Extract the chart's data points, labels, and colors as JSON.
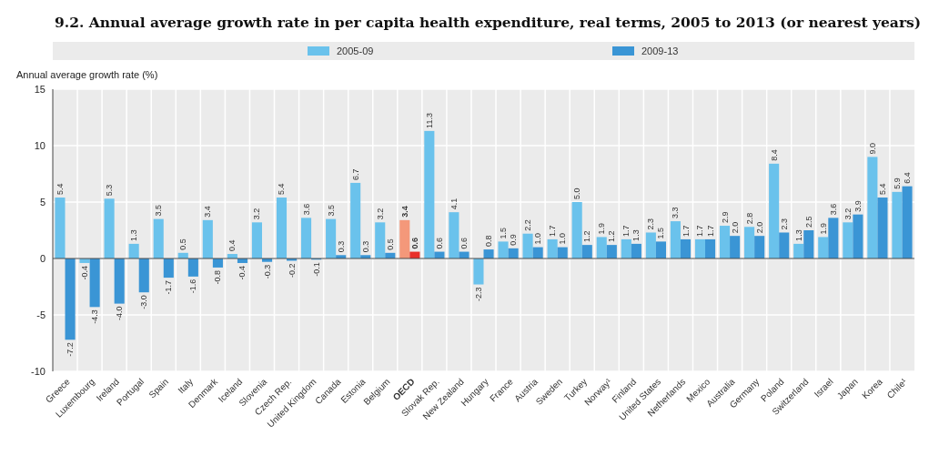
{
  "chart_data": {
    "type": "bar",
    "title": "9.2. Annual average growth rate in per capita health expenditure, real terms, 2005 to 2013 (or nearest years)",
    "ylabel": "Annual average growth rate (%)",
    "categories": [
      "Greece",
      "Luxembourg",
      "Ireland",
      "Portugal",
      "Spain",
      "Italy",
      "Denmark",
      "Iceland",
      "Slovenia",
      "Czech Rep.",
      "United Kingdom",
      "Canada",
      "Estonia",
      "Belgium",
      "OECD",
      "Slovak Rep.",
      "New Zealand",
      "Hungary",
      "France",
      "Austria",
      "Sweden",
      "Turkey",
      "Norway¹",
      "Finland",
      "United States",
      "Netherlands",
      "Mexico",
      "Australia",
      "Germany",
      "Poland",
      "Switzerland",
      "Israel",
      "Japan",
      "Korea",
      "Chile¹"
    ],
    "series": [
      {
        "name": "2005-09",
        "color": "#6ac2ec",
        "colors": [
          "#6ac2ec",
          "#6ac2ec",
          "#6ac2ec",
          "#6ac2ec",
          "#6ac2ec",
          "#6ac2ec",
          "#6ac2ec",
          "#6ac2ec",
          "#6ac2ec",
          "#6ac2ec",
          "#6ac2ec",
          "#6ac2ec",
          "#6ac2ec",
          "#6ac2ec",
          "#f4987a",
          "#6ac2ec",
          "#6ac2ec",
          "#6ac2ec",
          "#6ac2ec",
          "#6ac2ec",
          "#6ac2ec",
          "#6ac2ec",
          "#6ac2ec",
          "#6ac2ec",
          "#6ac2ec",
          "#6ac2ec",
          "#6ac2ec",
          "#6ac2ec",
          "#6ac2ec",
          "#6ac2ec",
          "#6ac2ec",
          "#6ac2ec",
          "#6ac2ec",
          "#6ac2ec",
          "#6ac2ec"
        ],
        "values": [
          5.4,
          -0.4,
          5.3,
          1.3,
          3.5,
          0.5,
          3.4,
          0.4,
          3.2,
          5.4,
          3.6,
          3.5,
          6.7,
          3.2,
          3.4,
          11.3,
          4.1,
          -2.3,
          1.5,
          2.2,
          1.7,
          5.0,
          1.9,
          1.7,
          2.3,
          3.3,
          1.7,
          2.9,
          2.8,
          8.4,
          1.3,
          1.9,
          3.2,
          9.0,
          5.9
        ],
        "value_labels": [
          "5.4",
          "-0.4",
          "5.3",
          "1.3",
          "3.5",
          "0.5",
          "3.4",
          "0.4",
          "3.2",
          "5.4",
          "3.6",
          "3.5",
          "6.7",
          "3.2",
          "3.4",
          "11.3",
          "4.1",
          "-2.3",
          "1.5",
          "2.2",
          "1.7",
          "5.0",
          "1.9",
          "1.7",
          "2.3",
          "3.3",
          "1.7",
          "2.9",
          "2.8",
          "8.4",
          "1.3",
          "1.9",
          "3.2",
          "9.0",
          "5.9"
        ]
      },
      {
        "name": "2009-13",
        "color": "#3a95d5",
        "colors": [
          "#3a95d5",
          "#3a95d5",
          "#3a95d5",
          "#3a95d5",
          "#3a95d5",
          "#3a95d5",
          "#3a95d5",
          "#3a95d5",
          "#3a95d5",
          "#3a95d5",
          "#3a95d5",
          "#3a95d5",
          "#3a95d5",
          "#3a95d5",
          "#e8302a",
          "#3a95d5",
          "#3a95d5",
          "#3a95d5",
          "#3a95d5",
          "#3a95d5",
          "#3a95d5",
          "#3a95d5",
          "#3a95d5",
          "#3a95d5",
          "#3a95d5",
          "#3a95d5",
          "#3a95d5",
          "#3a95d5",
          "#3a95d5",
          "#3a95d5",
          "#3a95d5",
          "#3a95d5",
          "#3a95d5",
          "#3a95d5",
          "#3a95d5"
        ],
        "values": [
          -7.2,
          -4.3,
          -4.0,
          -3.0,
          -1.7,
          -1.6,
          -0.8,
          -0.4,
          -0.3,
          -0.2,
          -0.1,
          0.3,
          0.3,
          0.5,
          0.6,
          0.6,
          0.6,
          0.8,
          0.9,
          1.0,
          1.0,
          1.2,
          1.2,
          1.3,
          1.5,
          1.7,
          1.7,
          2.0,
          2.0,
          2.3,
          2.5,
          3.6,
          3.9,
          5.4,
          6.4
        ],
        "value_labels": [
          "-7.2",
          "-4.3",
          "-4.0",
          "-3.0",
          "-1.7",
          "-1.6",
          "-0.8",
          "-0.4",
          "-0.3",
          "-0.2",
          "-0.1",
          "0.3",
          "0.3",
          "0.5",
          "0.6",
          "0.6",
          "0.6",
          "0.8",
          "0.9",
          "1.0",
          "1.0",
          "1.2",
          "1.2",
          "1.3",
          "1.5",
          "1.7",
          "1.7",
          "2.0",
          "2.0",
          "2.3",
          "2.5",
          "3.6",
          "3.9",
          "5.4",
          "6.4"
        ]
      }
    ],
    "ylim": [
      -10,
      15
    ],
    "yticks": [
      -10,
      -5,
      0,
      5,
      10,
      15
    ],
    "grid": true,
    "legend": "top"
  }
}
